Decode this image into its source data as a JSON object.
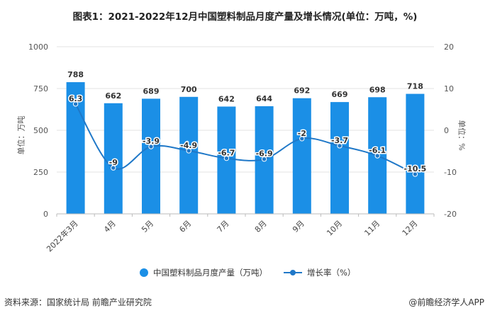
{
  "page": {
    "title": "图表1：2021-2022年12月中国塑料制品月度产量及增长情况(单位：万吨，%)",
    "source": "资料来源：国家统计局 前瞻产业研究院",
    "brand": "@前瞻经济学人APP"
  },
  "colors": {
    "bar": "#1b8fe6",
    "line": "#1f78c8",
    "grid": "#e3e3e3"
  },
  "chart_data": {
    "type": "bar",
    "categories": [
      "2022年3月",
      "4月",
      "5月",
      "6月",
      "7月",
      "8月",
      "9月",
      "10月",
      "11月",
      "12月"
    ],
    "series": [
      {
        "name": "中国塑料制品月度产量（万吨）",
        "type": "bar",
        "axis": "left",
        "values": [
          788,
          662,
          689,
          700,
          642,
          644,
          692,
          669,
          698,
          718
        ]
      },
      {
        "name": "增长率（%）",
        "type": "line",
        "axis": "right",
        "values": [
          6.3,
          -9,
          -3.9,
          -4.9,
          -6.7,
          -6.9,
          -2,
          -3.7,
          -6.1,
          -10.5
        ]
      }
    ],
    "ylabel_left": "单位：万吨",
    "ylabel_right": "单位：%",
    "ylim_left": [
      0,
      1000
    ],
    "ylim_right": [
      -20,
      20
    ],
    "yticks_left": [
      0,
      250,
      500,
      750,
      1000
    ],
    "yticks_right": [
      -20,
      -10,
      0,
      10,
      20
    ],
    "grid": true,
    "legend": "bottom"
  }
}
